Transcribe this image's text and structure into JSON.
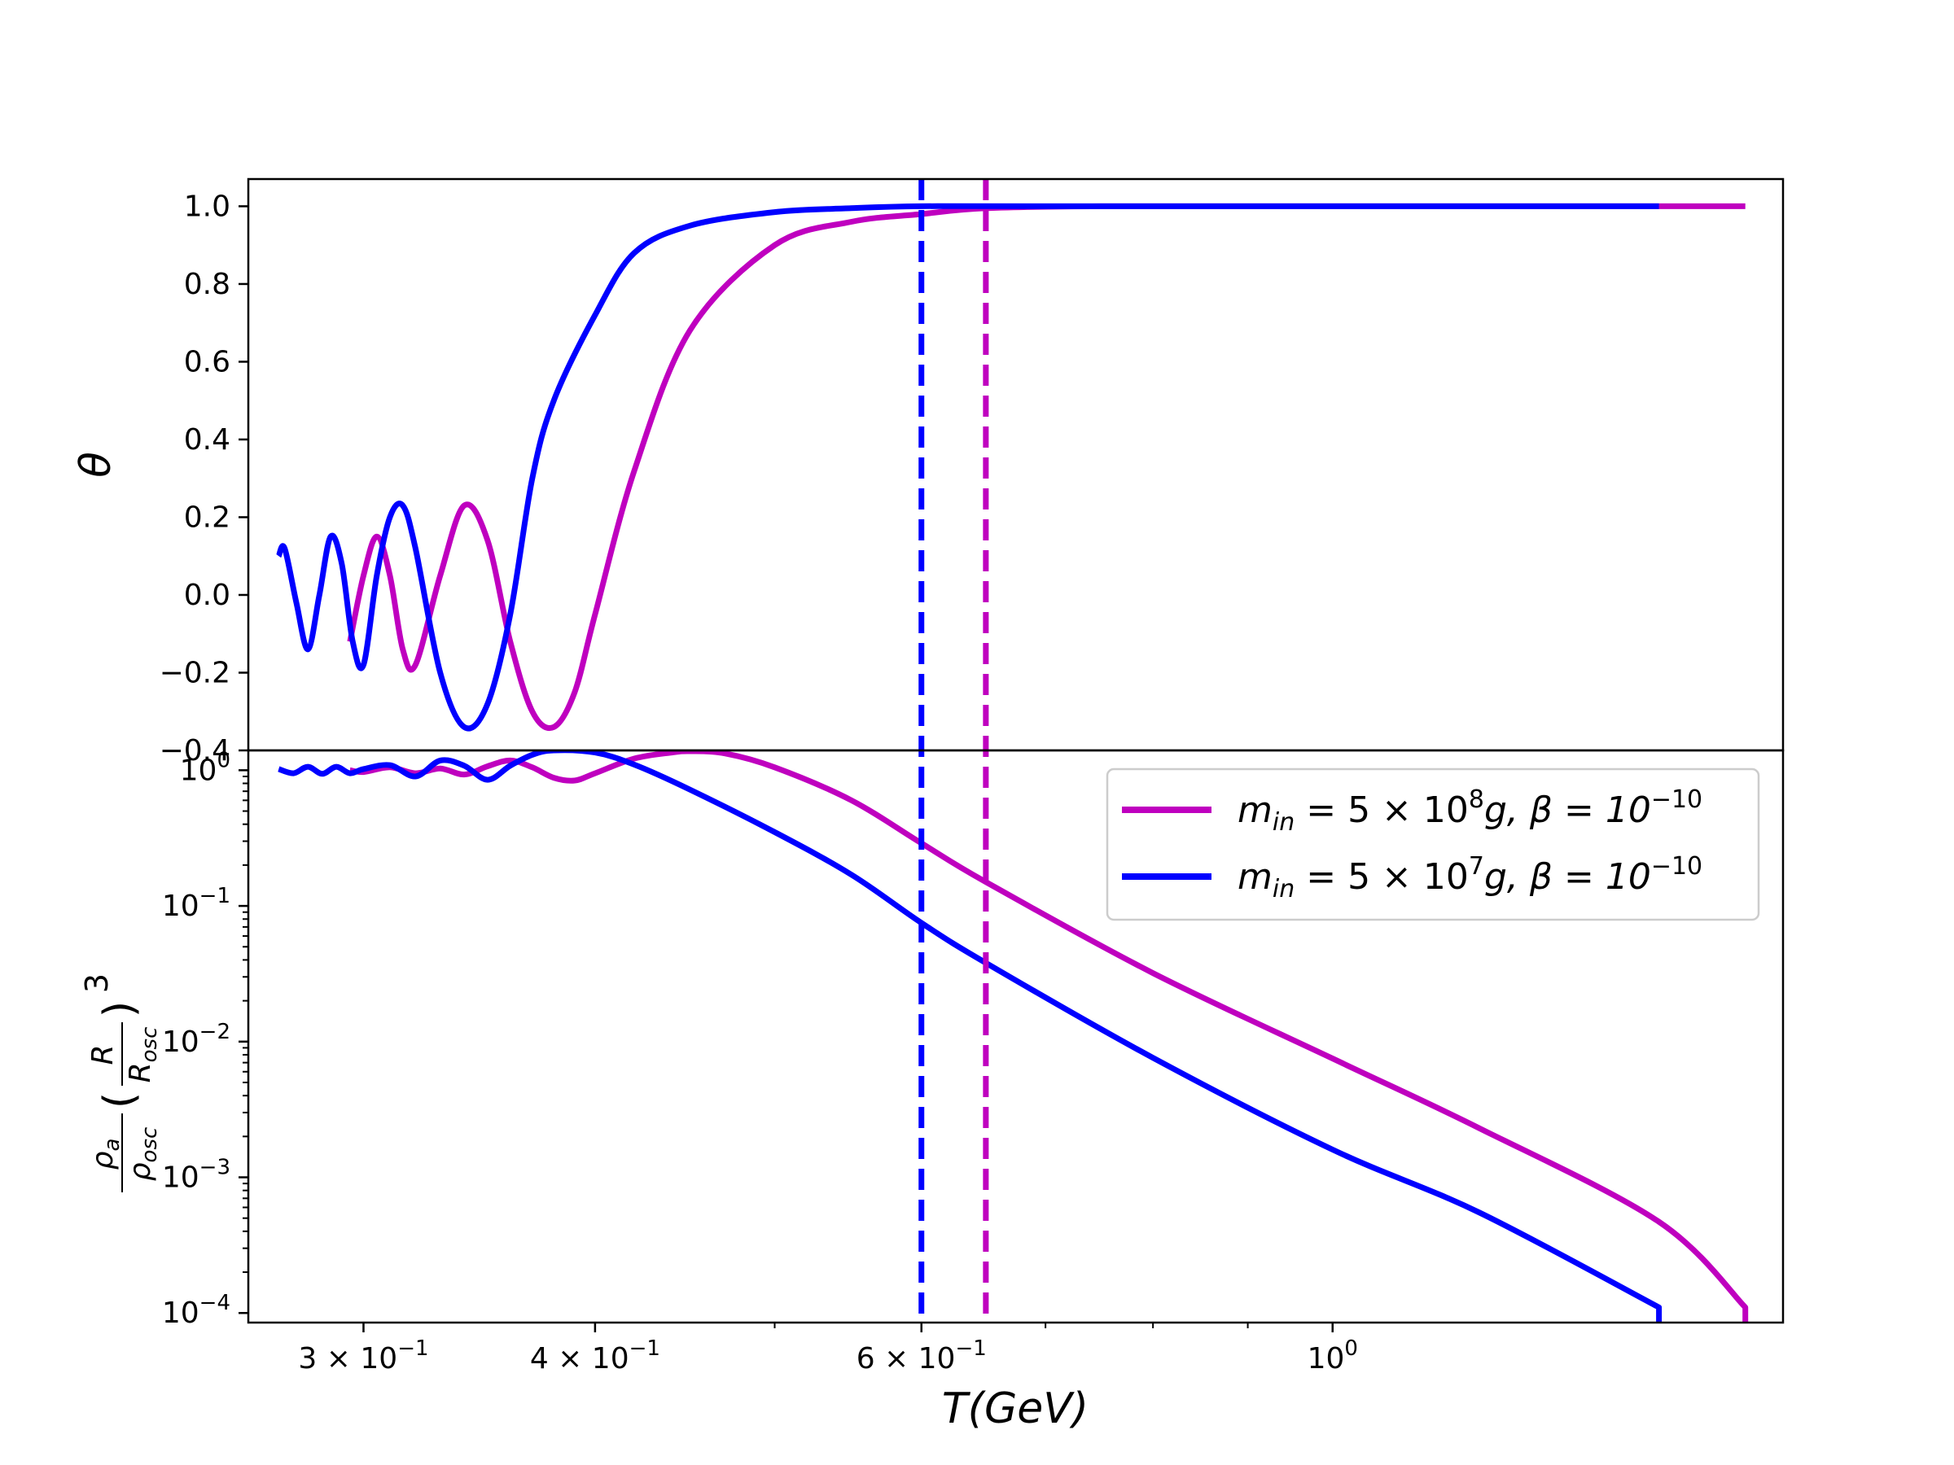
{
  "chart_data": [
    {
      "type": "line",
      "panel": "top",
      "ylabel": "θ",
      "ylim": [
        -0.4,
        1.07
      ],
      "x_scale": "log",
      "xlim": [
        0.26,
        1.75
      ],
      "yticks": [
        -0.4,
        -0.2,
        0.0,
        0.2,
        0.4,
        0.6,
        0.8,
        1.0
      ],
      "ytick_labels": [
        "−0.4",
        "−0.2",
        "0.0",
        "0.2",
        "0.4",
        "0.6",
        "0.8",
        "1.0"
      ],
      "grid": false,
      "series": [
        {
          "name": "m_in = 5×10^8 g, β = 10^-10",
          "color": "#bf00bf",
          "x": [
            0.295,
            0.3,
            0.305,
            0.31,
            0.315,
            0.32,
            0.33,
            0.34,
            0.35,
            0.36,
            0.37,
            0.38,
            0.39,
            0.4,
            0.42,
            0.45,
            0.5,
            0.55,
            0.6,
            0.65,
            0.75,
            1.0,
            1.5,
            1.67
          ],
          "y": [
            -0.12,
            0.05,
            0.15,
            0.05,
            -0.14,
            -0.18,
            0.05,
            0.23,
            0.14,
            -0.12,
            -0.3,
            -0.34,
            -0.25,
            -0.05,
            0.32,
            0.68,
            0.9,
            0.96,
            0.98,
            0.995,
            1.0,
            1.0,
            1.0,
            1.0
          ]
        },
        {
          "name": "m_in = 5×10^7 g, β = 10^-10",
          "color": "#0000ff",
          "x": [
            0.27,
            0.272,
            0.276,
            0.28,
            0.284,
            0.288,
            0.292,
            0.296,
            0.3,
            0.305,
            0.31,
            0.315,
            0.32,
            0.33,
            0.34,
            0.35,
            0.36,
            0.37,
            0.38,
            0.4,
            0.42,
            0.45,
            0.5,
            0.55,
            0.6,
            0.7,
            1.0,
            1.5
          ],
          "y": [
            0.1,
            0.12,
            -0.02,
            -0.14,
            0.0,
            0.15,
            0.08,
            -0.12,
            -0.18,
            0.05,
            0.2,
            0.23,
            0.12,
            -0.2,
            -0.34,
            -0.28,
            -0.05,
            0.3,
            0.5,
            0.72,
            0.88,
            0.95,
            0.985,
            0.995,
            1.0,
            1.0,
            1.0,
            1.0
          ]
        }
      ],
      "vlines": [
        {
          "x": 0.6,
          "color": "#0000ff",
          "style": "dashed"
        },
        {
          "x": 0.65,
          "color": "#bf00bf",
          "style": "dashed"
        }
      ]
    },
    {
      "type": "line",
      "panel": "bottom",
      "xlabel": "T(GeV)",
      "ylabel": "ρa/ρosc (R/Rosc)^3",
      "ylabel_parts": {
        "rho_a": "ρ",
        "sub_a": "a",
        "rho_osc": "ρ",
        "sub_osc": "osc",
        "R": "R",
        "R_osc": "R",
        "sub_R_osc": "osc",
        "lparen": "(",
        "rparen": ")",
        "exponent": "3"
      },
      "y_scale": "log",
      "ylim": [
        8.5e-05,
        1.4
      ],
      "x_scale": "log",
      "xlim": [
        0.26,
        1.75
      ],
      "yticks": [
        0.0001,
        0.001,
        0.01,
        0.1,
        1
      ],
      "ytick_labels": [
        {
          "base": "10",
          "exp": "−4"
        },
        {
          "base": "10",
          "exp": "−3"
        },
        {
          "base": "10",
          "exp": "−2"
        },
        {
          "base": "10",
          "exp": "−1"
        },
        {
          "base": "10",
          "exp": "0"
        }
      ],
      "xticks": [
        0.3,
        0.4,
        0.6,
        1.0
      ],
      "xtick_labels": [
        {
          "mant": "3 × 10",
          "exp": "−1"
        },
        {
          "mant": "4 × 10",
          "exp": "−1"
        },
        {
          "mant": "6 × 10",
          "exp": "−1"
        },
        {
          "mant": "10",
          "exp": "0"
        }
      ],
      "xminor_ticks": [
        0.5,
        0.7,
        0.8,
        0.9
      ],
      "grid": false,
      "legend_position": "upper-right",
      "legend": [
        {
          "label_m": "m",
          "label_sub": "in",
          "label_mid": " = 5 × 10",
          "label_exp": "8",
          "label_tail": "g, β = 10",
          "label_exp2": "−10",
          "color": "#bf00bf"
        },
        {
          "label_m": "m",
          "label_sub": "in",
          "label_mid": " = 5 × 10",
          "label_exp": "7",
          "label_tail": "g, β = 10",
          "label_exp2": "−10",
          "color": "#0000ff"
        }
      ],
      "series": [
        {
          "name": "m_in = 5×10^8 g, β = 10^-10",
          "color": "#bf00bf",
          "x": [
            0.295,
            0.3,
            0.31,
            0.32,
            0.33,
            0.34,
            0.35,
            0.36,
            0.37,
            0.38,
            0.39,
            0.4,
            0.42,
            0.44,
            0.45,
            0.47,
            0.5,
            0.55,
            0.6,
            0.65,
            0.8,
            1.0,
            1.2,
            1.5,
            1.67,
            1.67
          ],
          "y": [
            1.0,
            0.97,
            1.05,
            0.95,
            1.03,
            0.93,
            1.07,
            1.18,
            1.05,
            0.88,
            0.84,
            0.95,
            1.22,
            1.35,
            1.38,
            1.33,
            1.05,
            0.6,
            0.29,
            0.15,
            0.032,
            0.0075,
            0.0023,
            0.00047,
            0.00011,
            8.5e-05
          ]
        },
        {
          "name": "m_in = 5×10^7 g, β = 10^-10",
          "color": "#0000ff",
          "x": [
            0.27,
            0.275,
            0.28,
            0.285,
            0.29,
            0.295,
            0.3,
            0.31,
            0.32,
            0.33,
            0.34,
            0.35,
            0.36,
            0.37,
            0.38,
            0.4,
            0.42,
            0.45,
            0.5,
            0.55,
            0.6,
            0.65,
            0.8,
            1.0,
            1.2,
            1.5,
            1.5
          ],
          "y": [
            1.02,
            0.95,
            1.06,
            0.94,
            1.06,
            0.95,
            1.02,
            1.09,
            0.9,
            1.18,
            1.08,
            0.85,
            1.08,
            1.3,
            1.4,
            1.35,
            1.1,
            0.72,
            0.35,
            0.17,
            0.075,
            0.038,
            0.0076,
            0.0016,
            0.00055,
            0.00011,
            8.5e-05
          ]
        }
      ]
    }
  ]
}
